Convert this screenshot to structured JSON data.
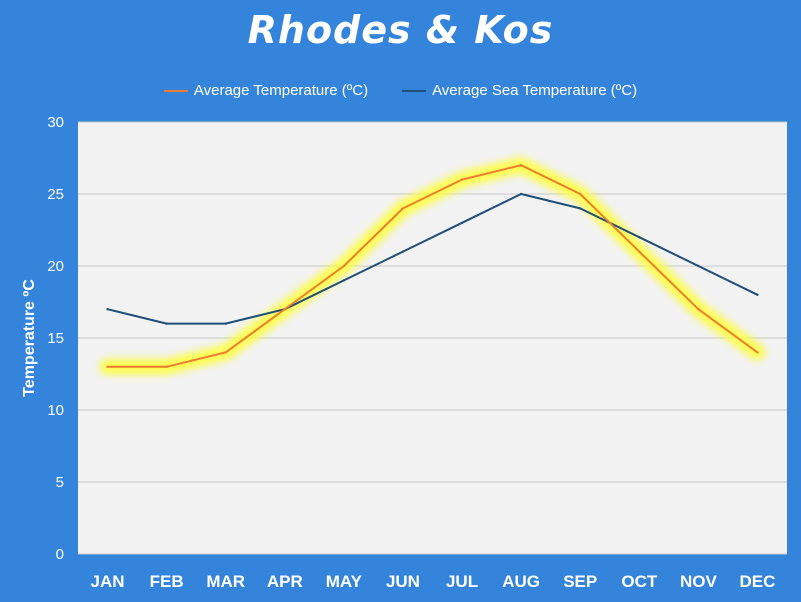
{
  "chart_data": {
    "type": "line",
    "title": "Rhodes & Kos",
    "xlabel": "",
    "ylabel": "Temperature ºC",
    "categories": [
      "JAN",
      "FEB",
      "MAR",
      "APR",
      "MAY",
      "JUN",
      "JUL",
      "AUG",
      "SEP",
      "OCT",
      "NOV",
      "DEC"
    ],
    "ylim": [
      0,
      30
    ],
    "yticks": [
      0,
      5,
      10,
      15,
      20,
      25,
      30
    ],
    "grid": true,
    "legend_position": "top",
    "series": [
      {
        "name": "Average Temperature (ºC)",
        "color": "#ed7d31",
        "highlight": "yellow glow",
        "values": [
          13,
          13,
          14,
          17,
          20,
          24,
          26,
          27,
          25,
          21,
          17,
          14
        ]
      },
      {
        "name": "Average Sea Temperature  (ºC)",
        "color": "#1f4e79",
        "values": [
          17,
          16,
          16,
          17,
          19,
          21,
          23,
          25,
          24,
          22,
          20,
          18
        ]
      }
    ]
  },
  "colors": {
    "background": "#3584dc",
    "plot_area": "#f2f2f2",
    "gridline": "#c8c8c8",
    "text": "#ffffff",
    "glow": "#ffff33"
  }
}
